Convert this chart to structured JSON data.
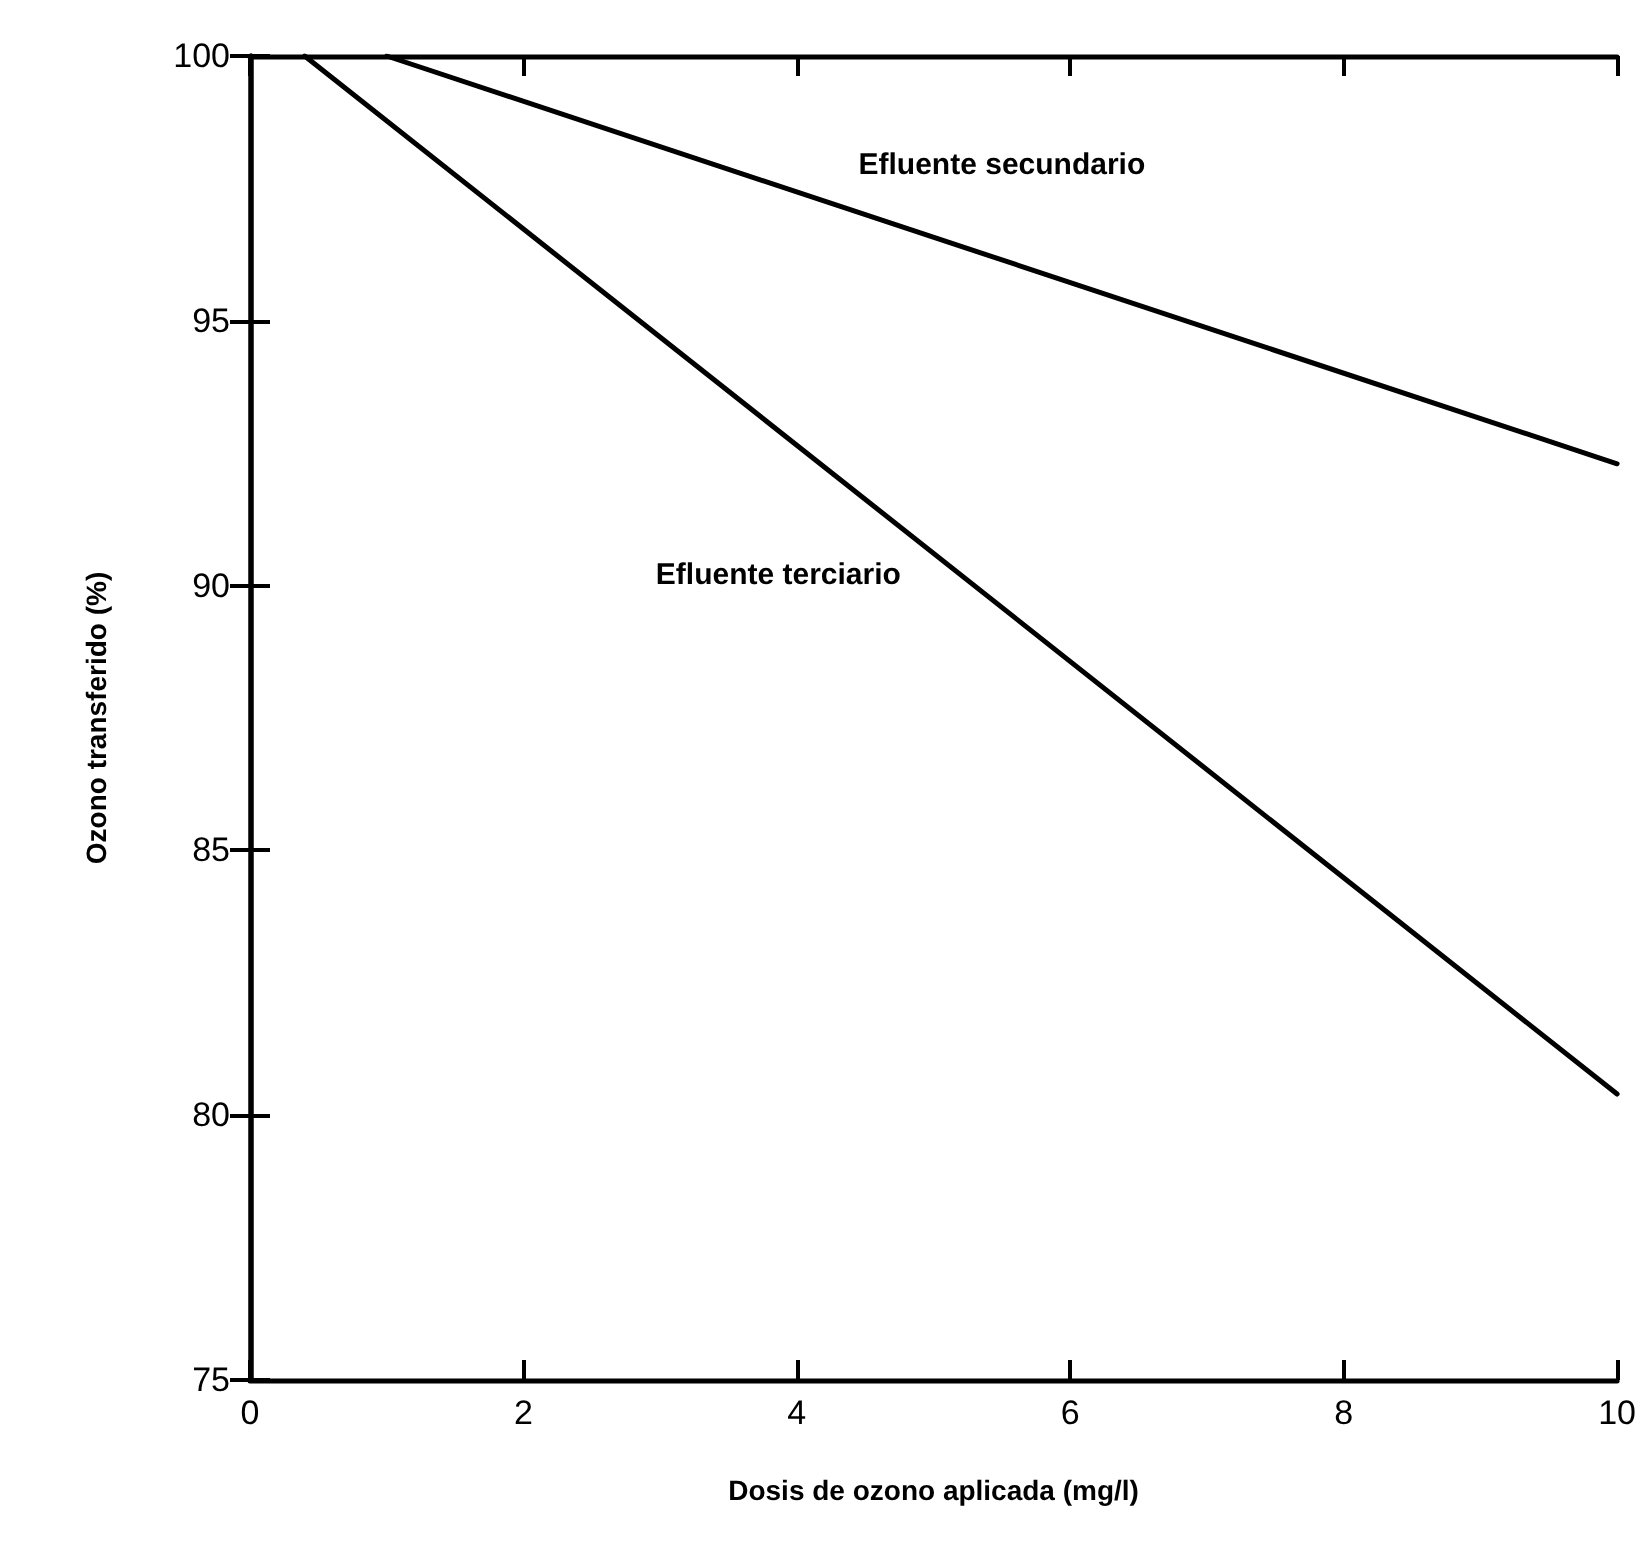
{
  "chart_data": {
    "type": "line",
    "xlabel": "Dosis de ozono aplicada (mg/l)",
    "ylabel": "Ozono transferido (%)",
    "xlim": [
      0,
      10
    ],
    "xticks": [
      0,
      2,
      4,
      6,
      8,
      10
    ],
    "ylim": [
      75,
      100
    ],
    "yticks": [
      75,
      80,
      85,
      90,
      95,
      100
    ],
    "grid": false,
    "marker": "none",
    "line_style": "solid",
    "series": [
      {
        "name": "Efluente secundario",
        "color": "#000000",
        "x": [
          1.0,
          10
        ],
        "values": [
          100,
          92.3
        ]
      },
      {
        "name": "Efluente terciario",
        "color": "#000000",
        "x": [
          0.4,
          10
        ],
        "values": [
          100,
          80.4
        ]
      }
    ]
  }
}
